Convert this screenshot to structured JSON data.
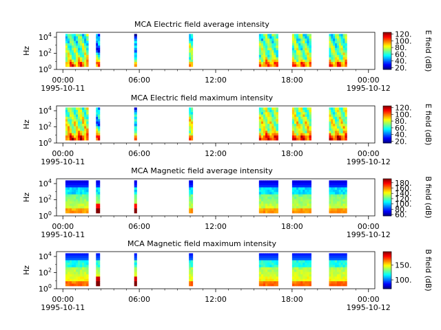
{
  "chart_data": [
    {
      "type": "heatmap",
      "title": "MCA  Electric field average intensity",
      "ylabel": "Hz",
      "colorbar_label": "E field (dB)",
      "colorbar_range": [
        15,
        125
      ],
      "colorbar_ticks": [
        {
          "v": 20,
          "label": "20."
        },
        {
          "v": 40,
          "label": "40."
        },
        {
          "v": 60,
          "label": "60."
        },
        {
          "v": 80,
          "label": "80."
        },
        {
          "v": 100,
          "label": "100."
        },
        {
          "v": 120,
          "label": "120."
        }
      ],
      "y_ticks": [
        {
          "exp": 0,
          "label": "10",
          "sup": "0"
        },
        {
          "exp": 2,
          "label": "10",
          "sup": "2"
        },
        {
          "exp": 4,
          "label": "10",
          "sup": "4"
        }
      ],
      "x_ticks": [
        {
          "hour": 0,
          "label": "00:00",
          "sub": "1995-10-11"
        },
        {
          "hour": 6,
          "label": "06:00",
          "sub": ""
        },
        {
          "hour": 12,
          "label": "12:00",
          "sub": ""
        },
        {
          "hour": 18,
          "label": "18:00",
          "sub": ""
        },
        {
          "hour": 24,
          "label": "00:00",
          "sub": "1995-10-12"
        }
      ],
      "xlim_hours": [
        -0.5,
        24.5
      ],
      "ylim_exp": [
        0,
        4.6
      ],
      "data_y_exp": [
        0.35,
        4.4
      ],
      "intervals_hours": [
        [
          0.2,
          2.0
        ],
        [
          2.6,
          2.9
        ],
        [
          5.6,
          5.8
        ],
        [
          9.9,
          10.2
        ],
        [
          15.4,
          16.9
        ],
        [
          18.0,
          19.5
        ],
        [
          20.9,
          22.3
        ]
      ],
      "colormap": "jet",
      "field": "electric_avg"
    },
    {
      "type": "heatmap",
      "title": "MCA  Electric field maximum intensity",
      "ylabel": "Hz",
      "colorbar_label": "E field (dB)",
      "colorbar_range": [
        15,
        125
      ],
      "colorbar_ticks": [
        {
          "v": 20,
          "label": "20."
        },
        {
          "v": 40,
          "label": "40."
        },
        {
          "v": 60,
          "label": "60."
        },
        {
          "v": 80,
          "label": "80."
        },
        {
          "v": 100,
          "label": "100."
        },
        {
          "v": 120,
          "label": "120."
        }
      ],
      "y_ticks": [
        {
          "exp": 0,
          "label": "10",
          "sup": "0"
        },
        {
          "exp": 2,
          "label": "10",
          "sup": "2"
        },
        {
          "exp": 4,
          "label": "10",
          "sup": "4"
        }
      ],
      "x_ticks": [
        {
          "hour": 0,
          "label": "00:00",
          "sub": "1995-10-11"
        },
        {
          "hour": 6,
          "label": "06:00",
          "sub": ""
        },
        {
          "hour": 12,
          "label": "12:00",
          "sub": ""
        },
        {
          "hour": 18,
          "label": "18:00",
          "sub": ""
        },
        {
          "hour": 24,
          "label": "00:00",
          "sub": "1995-10-12"
        }
      ],
      "xlim_hours": [
        -0.5,
        24.5
      ],
      "ylim_exp": [
        0,
        4.6
      ],
      "data_y_exp": [
        0.35,
        4.4
      ],
      "intervals_hours": [
        [
          0.2,
          2.0
        ],
        [
          2.6,
          2.9
        ],
        [
          5.6,
          5.8
        ],
        [
          9.9,
          10.2
        ],
        [
          15.4,
          16.9
        ],
        [
          18.0,
          19.5
        ],
        [
          20.9,
          22.3
        ]
      ],
      "colormap": "jet",
      "field": "electric_max"
    },
    {
      "type": "heatmap",
      "title": "MCA  Magnetic field average intensity",
      "ylabel": "Hz",
      "colorbar_label": "B field (dB)",
      "colorbar_range": [
        55,
        195
      ],
      "colorbar_ticks": [
        {
          "v": 60,
          "label": "60."
        },
        {
          "v": 80,
          "label": "80."
        },
        {
          "v": 100,
          "label": "100."
        },
        {
          "v": 120,
          "label": "120."
        },
        {
          "v": 140,
          "label": "140."
        },
        {
          "v": 160,
          "label": "160."
        },
        {
          "v": 180,
          "label": "180."
        }
      ],
      "y_ticks": [
        {
          "exp": 0,
          "label": "10",
          "sup": "0"
        },
        {
          "exp": 2,
          "label": "10",
          "sup": "2"
        },
        {
          "exp": 4,
          "label": "10",
          "sup": "4"
        }
      ],
      "x_ticks": [
        {
          "hour": 0,
          "label": "00:00",
          "sub": "1995-10-11"
        },
        {
          "hour": 6,
          "label": "06:00",
          "sub": ""
        },
        {
          "hour": 12,
          "label": "12:00",
          "sub": ""
        },
        {
          "hour": 18,
          "label": "18:00",
          "sub": ""
        },
        {
          "hour": 24,
          "label": "00:00",
          "sub": "1995-10-12"
        }
      ],
      "xlim_hours": [
        -0.5,
        24.5
      ],
      "ylim_exp": [
        0,
        4.6
      ],
      "data_y_exp": [
        0.35,
        4.4
      ],
      "intervals_hours": [
        [
          0.2,
          2.0
        ],
        [
          2.6,
          2.9
        ],
        [
          5.6,
          5.8
        ],
        [
          9.9,
          10.2
        ],
        [
          15.4,
          16.9
        ],
        [
          18.0,
          19.5
        ],
        [
          20.9,
          22.3
        ]
      ],
      "colormap": "jet",
      "field": "magnetic_avg"
    },
    {
      "type": "heatmap",
      "title": "MCA  Magnetic field maximum intensity",
      "ylabel": "Hz",
      "colorbar_label": "B field (dB)",
      "colorbar_range": [
        70,
        195
      ],
      "colorbar_ticks": [
        {
          "v": 100,
          "label": "100."
        },
        {
          "v": 150,
          "label": "150."
        }
      ],
      "y_ticks": [
        {
          "exp": 0,
          "label": "10",
          "sup": "0"
        },
        {
          "exp": 2,
          "label": "10",
          "sup": "2"
        },
        {
          "exp": 4,
          "label": "10",
          "sup": "4"
        }
      ],
      "x_ticks": [
        {
          "hour": 0,
          "label": "00:00",
          "sub": "1995-10-11"
        },
        {
          "hour": 6,
          "label": "06:00",
          "sub": ""
        },
        {
          "hour": 12,
          "label": "12:00",
          "sub": ""
        },
        {
          "hour": 18,
          "label": "18:00",
          "sub": ""
        },
        {
          "hour": 24,
          "label": "00:00",
          "sub": "1995-10-12"
        }
      ],
      "xlim_hours": [
        -0.5,
        24.5
      ],
      "ylim_exp": [
        0,
        4.6
      ],
      "data_y_exp": [
        0.35,
        4.4
      ],
      "intervals_hours": [
        [
          0.2,
          2.0
        ],
        [
          2.6,
          2.9
        ],
        [
          5.6,
          5.8
        ],
        [
          9.9,
          10.2
        ],
        [
          15.4,
          16.9
        ],
        [
          18.0,
          19.5
        ],
        [
          20.9,
          22.3
        ]
      ],
      "colormap": "jet",
      "field": "magnetic_max"
    }
  ]
}
